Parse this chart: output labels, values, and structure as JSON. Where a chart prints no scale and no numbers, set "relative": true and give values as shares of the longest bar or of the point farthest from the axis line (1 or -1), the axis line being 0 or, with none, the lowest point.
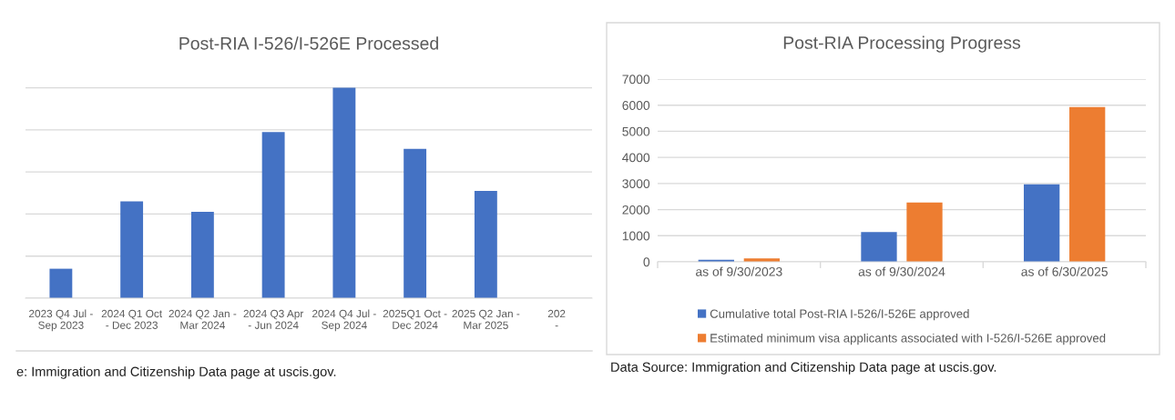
{
  "chart_data": [
    {
      "type": "bar",
      "title": "Post-RIA I-526/I-526E Processed",
      "categories": [
        "2023 Q4 Jul -\nSep 2023",
        "2024 Q1 Oct\n- Dec 2023",
        "2024 Q2 Jan -\nMar 2024",
        "2024 Q3 Apr\n- Jun 2024",
        "2024 Q4 Jul -\nSep 2024",
        "2025Q1 Oct -\nDec 2024",
        "2025 Q2 Jan -\nMar 2025",
        "202\n-"
      ],
      "values": [
        0.14,
        0.46,
        0.41,
        0.79,
        1,
        0.71,
        0.51,
        null
      ],
      "color": "#4472c4",
      "relative": true,
      "grid": "y",
      "annotations": [
        "e: Immigration and Citizenship Data page at uscis.gov."
      ]
    },
    {
      "type": "bar",
      "title": "Post-RIA Processing Progress",
      "categories": [
        "as of 9/30/2023",
        "as of 9/30/2024",
        "as of 6/30/2025"
      ],
      "series": [
        {
          "name": "Cumulative total Post-RIA I-526/I-526E approved",
          "color": "#4472c4",
          "values": [
            80,
            1140,
            2970
          ]
        },
        {
          "name": "Estimated minimum visa applicants associated with I-526/I-526E approved",
          "color": "#ed7d31",
          "values": [
            130,
            2270,
            5930
          ]
        }
      ],
      "ylim": [
        0,
        7000
      ],
      "yticks": [
        0,
        1000,
        2000,
        3000,
        4000,
        5000,
        6000,
        7000
      ],
      "grid": "y",
      "legend": "bottom",
      "annotations": [
        "Data Source: Immigration and Citizenship Data page at uscis.gov."
      ]
    }
  ]
}
